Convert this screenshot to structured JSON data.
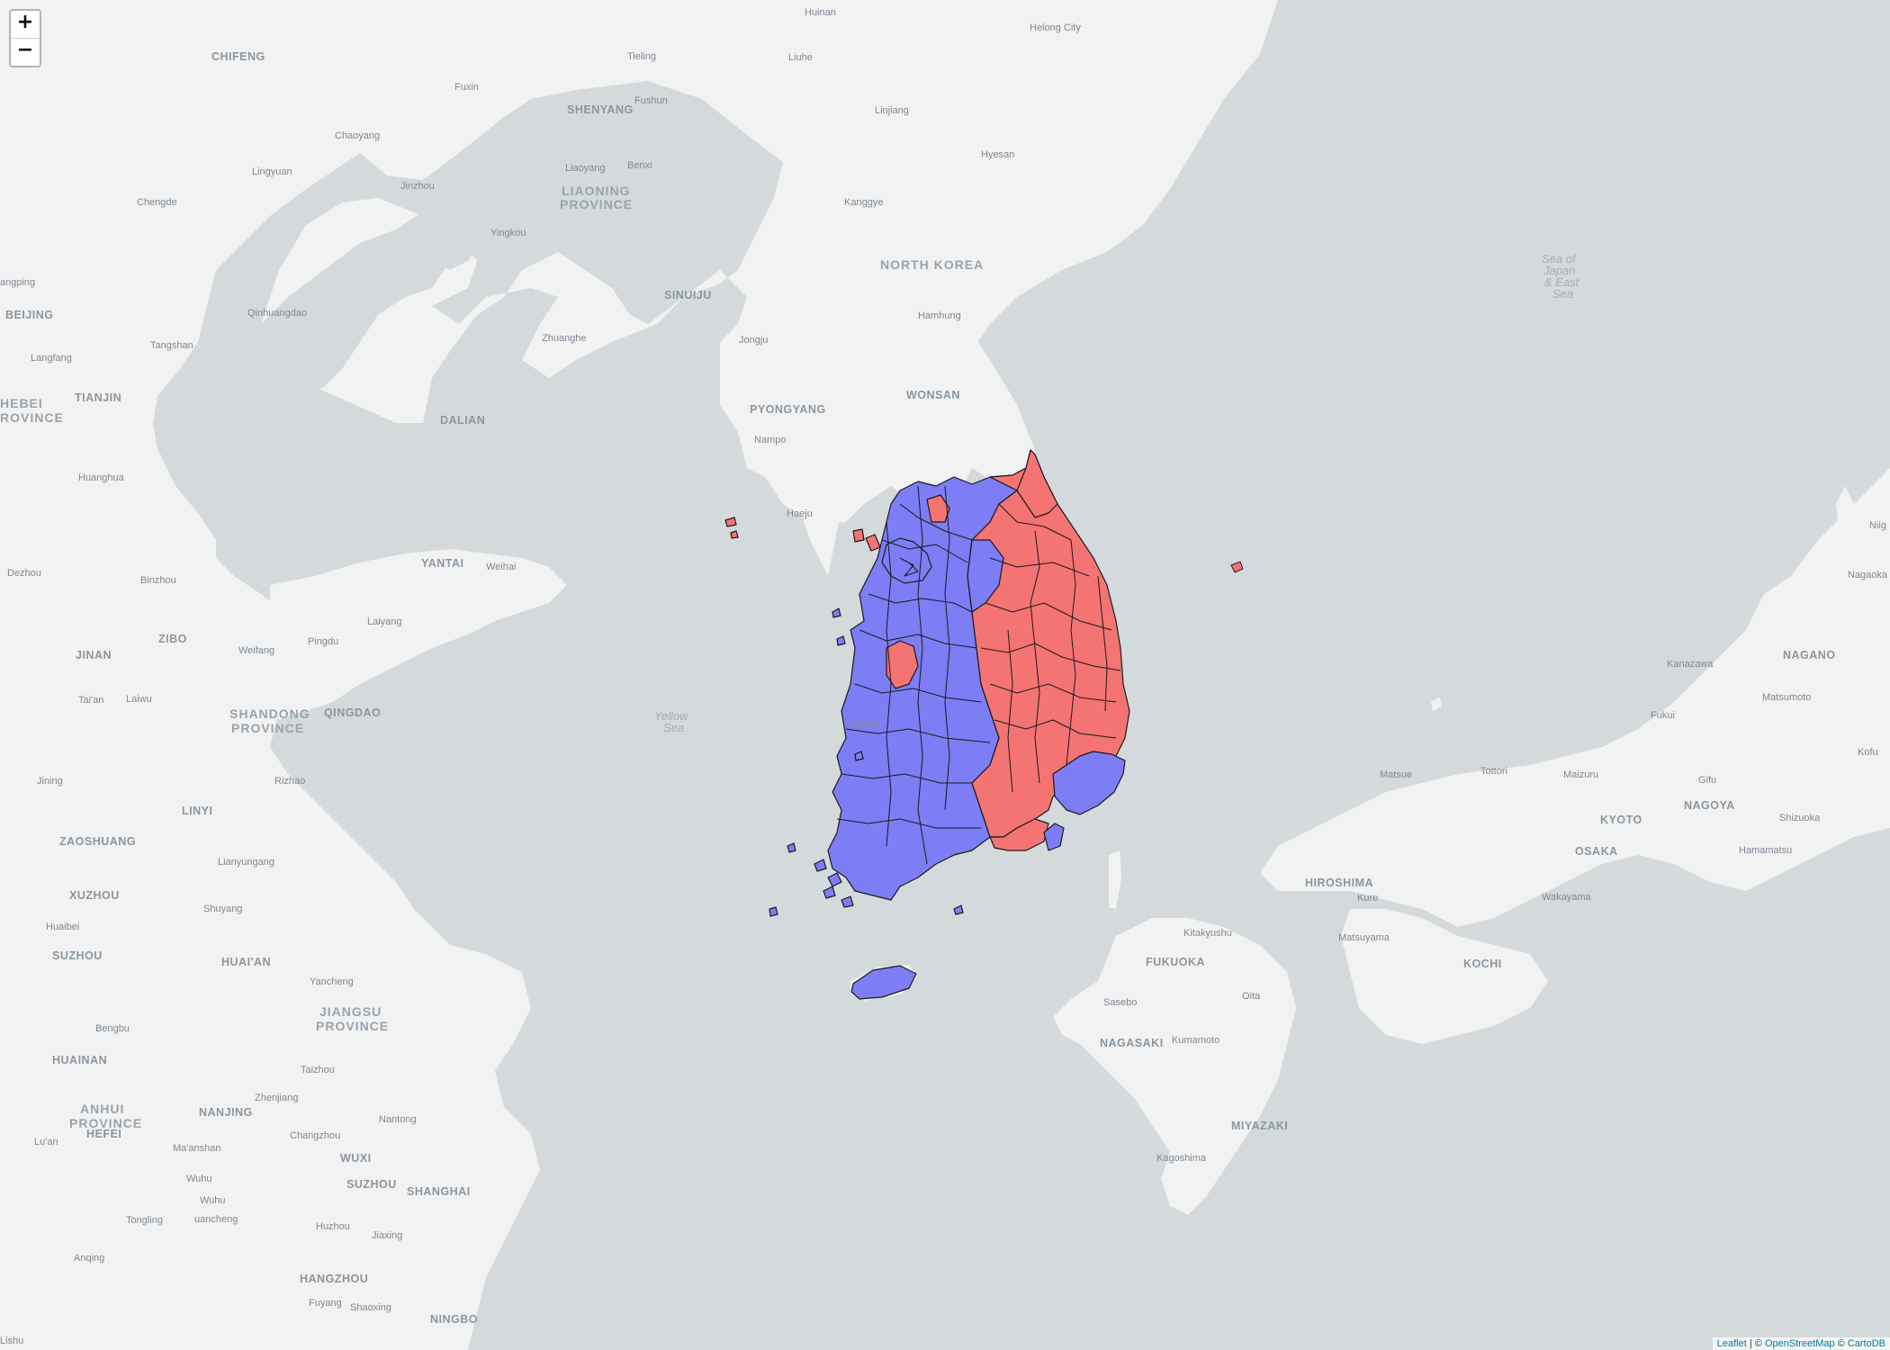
{
  "controls": {
    "zoom_in": "+",
    "zoom_out": "−"
  },
  "attribution": {
    "leaflet": "Leaflet",
    "sep1": " | © ",
    "osm": "OpenStreetMap",
    "sep2": " © ",
    "carto": "CartoDB"
  },
  "colors": {
    "red": "#f47373",
    "blue": "#7d7df5",
    "land": "#f2f2f2",
    "water": "#d4dadc"
  },
  "labels": {
    "huinan": "Huinan",
    "helong": "Helong City",
    "chifeng": "CHIFENG",
    "tieling": "Tieling",
    "liuhe": "Liuhe",
    "fuxin": "Fuxin",
    "fushun": "Fushun",
    "shenyang": "SHENYANG",
    "linjiang": "Linjiang",
    "chaoyang": "Chaoyang",
    "hyesan": "Hyesan",
    "liaoyang": "Liaoyang",
    "benxi": "Benxi",
    "lingyuan": "Lingyuan",
    "jinzhou": "Jinzhou",
    "liaoning1": "LIAONING",
    "liaoning2": "PROVINCE",
    "chengde": "Chengde",
    "kanggye": "Kanggye",
    "yingkou": "Yingkou",
    "northkorea": "NORTH KOREA",
    "sea1": "Sea of",
    "sea2": "Japan",
    "sea3": "& East",
    "sea4": "Sea",
    "angping": "angping",
    "sinuiju": "SINUIJU",
    "beijing": "BEIJING",
    "qinhuangdao": "Qinhuangdao",
    "hamhung": "Hamhung",
    "zhuanghe": "Zhuanghe",
    "jongju": "Jongju",
    "langfang": "Langfang",
    "tangshan": "Tangshan",
    "wonsan": "WONSAN",
    "tianjin": "TIANJIN",
    "hebei1": "HEBEI",
    "hebei2": "ROVINCE",
    "pyongyang": "PYONGYANG",
    "dalian": "DALIAN",
    "nampo": "Nampo",
    "huanghua": "Huanghua",
    "haeju": "Haeju",
    "yantai": "YANTAI",
    "weihai": "Weihai",
    "dezhou": "Dezhou",
    "binzhou": "Binzhou",
    "laiyang": "Laiyang",
    "zibo": "ZIBO",
    "jinan": "JINAN",
    "weifang": "Weifang",
    "pingdu": "Pingdu",
    "taian": "Tai'an",
    "laiwu": "Laiwu",
    "shandong1": "SHANDONG",
    "shandong2": "PROVINCE",
    "qingdao": "QINGDAO",
    "yellow1": "Yellow",
    "yellow2": "Sea",
    "gunsan": "Gunsa",
    "jining": "Jining",
    "rizhao": "Rizhao",
    "linyi": "LINYI",
    "zaoshuang": "ZAOSHUANG",
    "lianyungang": "Lianyungang",
    "xuzhou": "XUZHOU",
    "shuyang": "Shuyang",
    "huaibei": "Huaibei",
    "suzhou_n": "SUZHOU",
    "huaian": "HUAI'AN",
    "yancheng": "Yancheng",
    "jiangsu1": "JIANGSU",
    "jiangsu2": "PROVINCE",
    "bengbu": "Bengbu",
    "huainan": "HUAINAN",
    "taizhou": "Taizhou",
    "zhenjiang": "Zhenjiang",
    "anhui1": "ANHUI",
    "anhui2": "PROVINCE",
    "nanjing": "NANJING",
    "nantong": "Nantong",
    "hefei": "HEFEI",
    "luan": "Lu'an",
    "maanshan": "Ma'anshan",
    "changzhou": "Changzhou",
    "wuxi": "WUXI",
    "wuhu": "Wuhu",
    "suzhou": "SUZHOU",
    "shanghai": "SHANGHAI",
    "wuhu2": "Wuhu",
    "tongling": "Tongling",
    "uancheng": "uancheng",
    "huzhou": "Huzhou",
    "jiaxing": "Jiaxing",
    "anqing": "Anqing",
    "hangzhou": "HANGZHOU",
    "fuyang": "Fuyang",
    "shaoxing": "Shaoxing",
    "ningbo": "NINGBO",
    "lishui": "Lishu",
    "niig": "Niig",
    "nagaoka": "Nagaoka",
    "kanazawa": "Kanazawa",
    "nagano": "NAGANO",
    "matsumoto": "Matsumoto",
    "fukui": "Fukui",
    "kofu": "Kofu",
    "matsue": "Matsue",
    "tottori": "Tottori",
    "maizuru": "Maizuru",
    "gifu": "Gifu",
    "nagoya": "NAGOYA",
    "kyoto": "KYOTO",
    "shizuoka": "Shizuoka",
    "hiroshima": "HIROSHIMA",
    "kure": "Kure",
    "osaka": "OSAKA",
    "hamamatsu": "Hamamatsu",
    "wakayama": "Wakayama",
    "kitakyushu": "Kitakyushu",
    "matsuyama": "Matsuyama",
    "fukuoka": "FUKUOKA",
    "kochi": "KOCHI",
    "oita": "Oita",
    "sasebo": "Sasebo",
    "nagasaki": "NAGASAKI",
    "kumamoto": "Kumamoto",
    "miyazaki": "MIYAZAKI",
    "kagoshima": "Kagoshima"
  }
}
